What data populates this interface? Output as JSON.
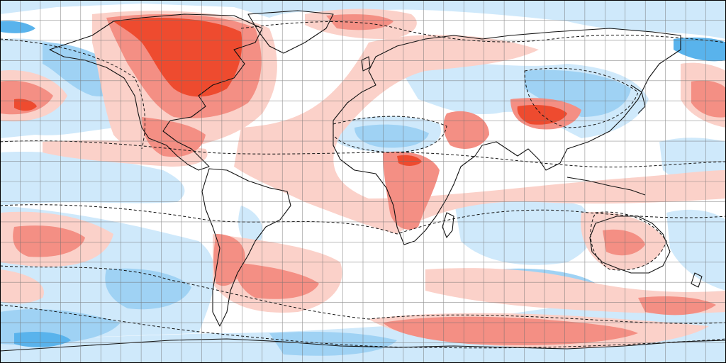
{
  "map": {
    "projection": "equirectangular",
    "grid": {
      "lon_step_deg": 10,
      "lat_step_deg": 10,
      "color": "#6e6e6e"
    },
    "palette": {
      "strong_warm": "#ee4b2f",
      "warm": "#f48f84",
      "light_warm": "#fbd1c9",
      "neutral": "#ffffff",
      "light_cool": "#cfe9fb",
      "cool": "#9fd2f4",
      "strong_cool": "#59b3ec"
    },
    "outline_color": "#111111",
    "contour_style": "dashed"
  }
}
